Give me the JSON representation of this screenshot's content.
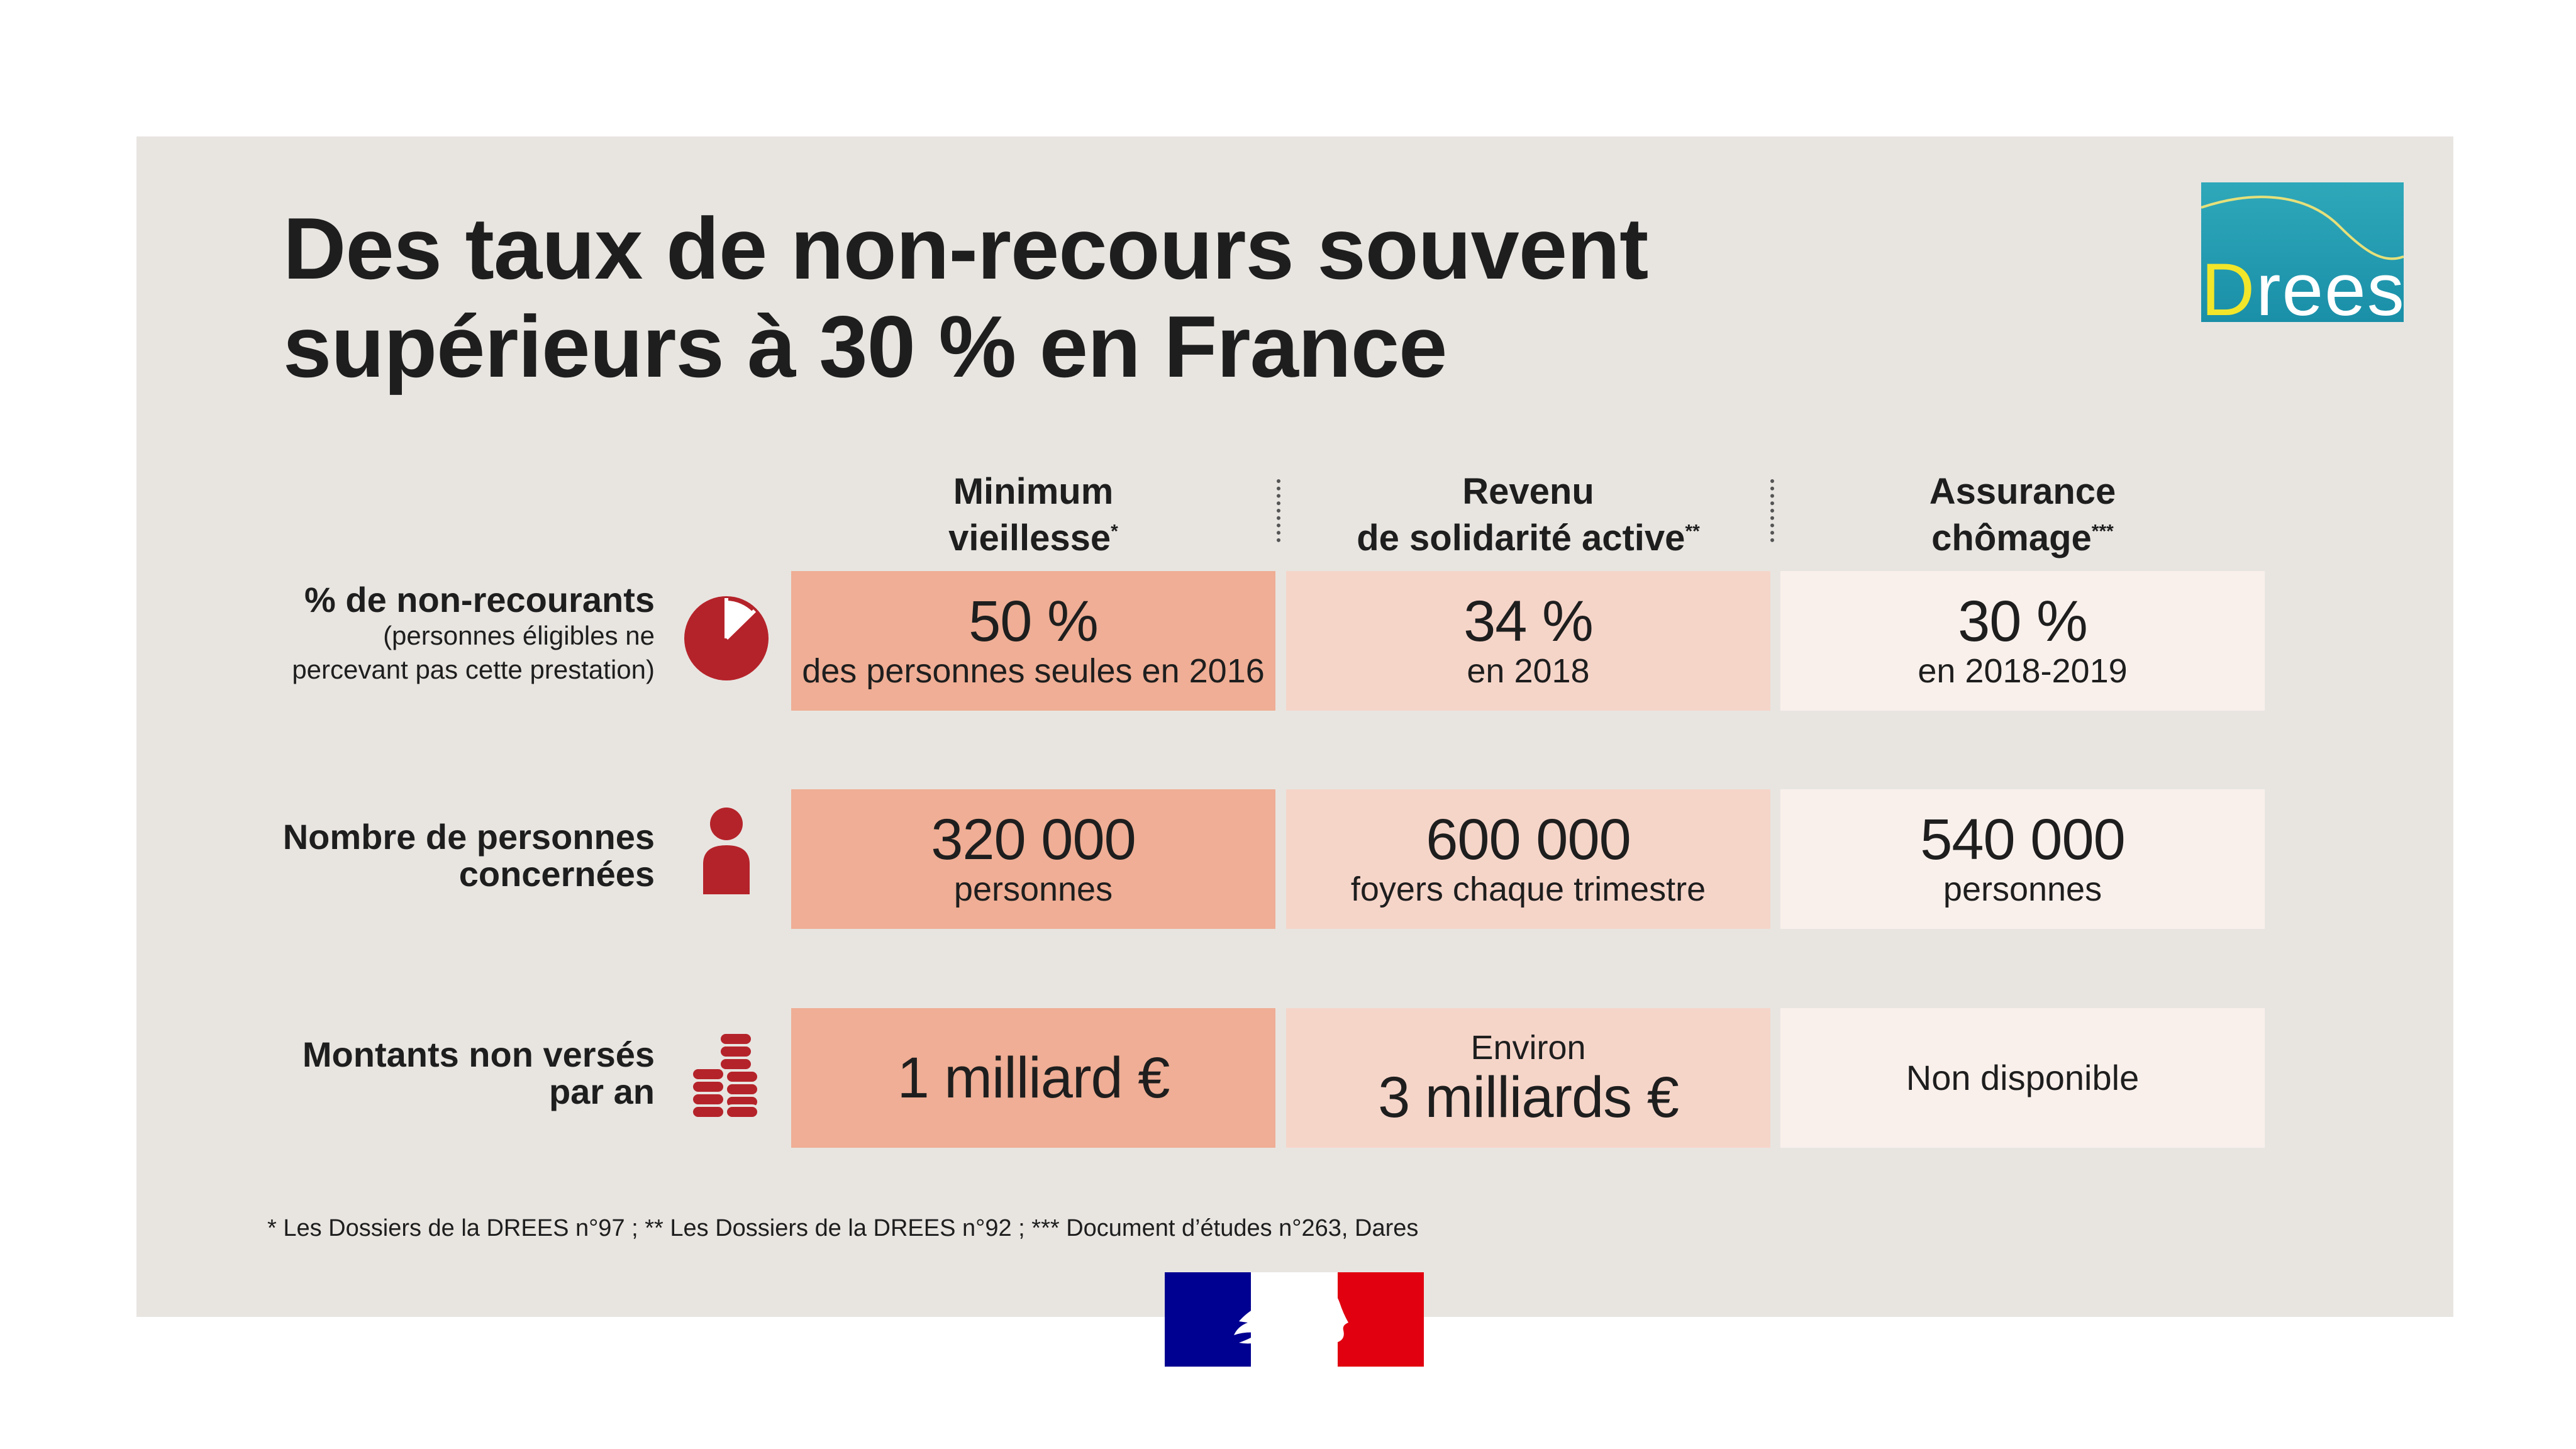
{
  "title": {
    "line1": "Des taux de non-recours souvent",
    "line2": "supérieurs à 30 % en France"
  },
  "logo": {
    "first_letter": "D",
    "rest": "rees",
    "colors": {
      "bg": "#1f9bb1",
      "accent": "#f2e62a"
    }
  },
  "columns": [
    {
      "line1": "Minimum",
      "line2": "vieillesse",
      "mark": "*"
    },
    {
      "line1": "Revenu",
      "line2": "de solidarité active",
      "mark": "**"
    },
    {
      "line1": "Assurance",
      "line2": "chômage",
      "mark": "***"
    }
  ],
  "rows": [
    {
      "label": "% de non-recourants",
      "sublabel_line1": "(personnes éligibles ne",
      "sublabel_line2": "percevant pas cette prestation)",
      "icon": "pie-chart-icon",
      "cells": [
        {
          "value": "50 %",
          "detail": "des personnes seules en 2016"
        },
        {
          "value": "34 %",
          "detail": "en 2018"
        },
        {
          "value": "30 %",
          "detail": "en 2018-2019"
        }
      ]
    },
    {
      "label_line1": "Nombre de personnes",
      "label_line2": "concernées",
      "icon": "person-icon",
      "cells": [
        {
          "value": "320 000",
          "detail": "personnes"
        },
        {
          "value": "600 000",
          "detail": "foyers chaque trimestre"
        },
        {
          "value": "540 000",
          "detail": "personnes"
        }
      ]
    },
    {
      "label_line1": "Montants non versés",
      "label_line2": "par an",
      "icon": "coins-icon",
      "cells": [
        {
          "value": "1 milliard €"
        },
        {
          "prefix": "Environ",
          "value": "3 milliards €"
        },
        {
          "detail": "Non disponible"
        }
      ]
    }
  ],
  "footnote": "* Les Dossiers de la DREES n°97 ; ** Les Dossiers de la DREES n°92 ; *** Document d’études n°263, Dares",
  "colors": {
    "panel": "#e8e5e1",
    "col1": "#efae95",
    "col2": "#f6d5c9",
    "col3": "#f9f0eb",
    "icon_red": "#b5232a",
    "flag_blue": "#000091",
    "flag_red": "#e1000f"
  }
}
